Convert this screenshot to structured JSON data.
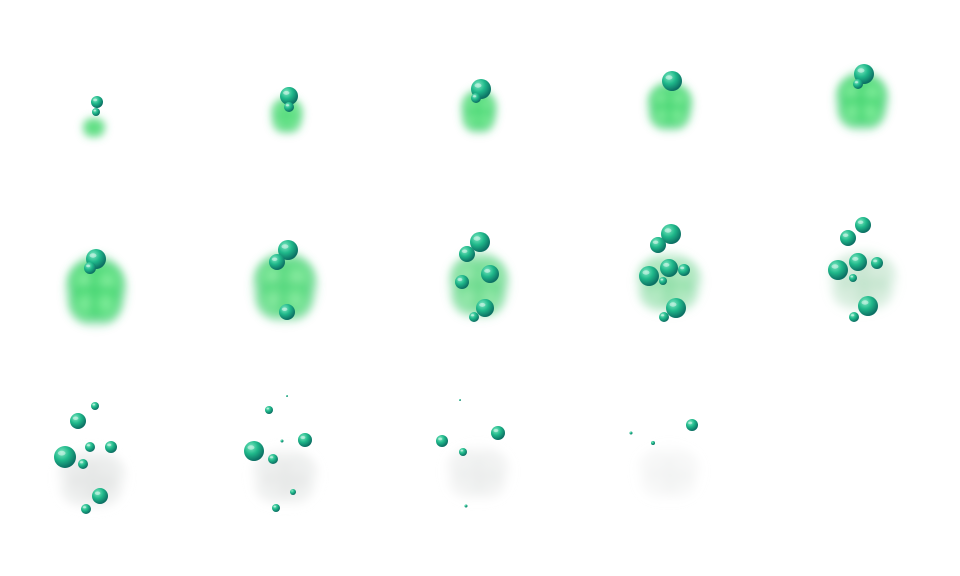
{
  "sprite_sheet": {
    "columns": 5,
    "rows": 3,
    "frame_count": 14,
    "colors": {
      "background": "#ffffff",
      "smoke_core": "#8ef0a4",
      "smoke_mid": "#4fdc78",
      "smoke_edge": "#2fbf68",
      "fade_smoke": "#d9dcdb",
      "bubble_light": "#7fe8c2",
      "bubble_mid": "#1fb88a",
      "bubble_dark": "#0c6f63"
    },
    "icons": [
      "green-smoke-puff",
      "bubble"
    ]
  }
}
